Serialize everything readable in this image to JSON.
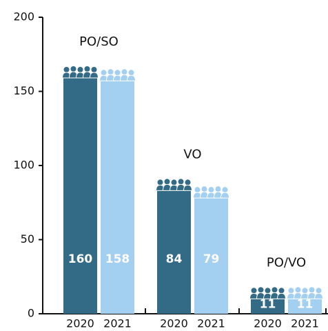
{
  "chart_data": {
    "type": "bar",
    "categories": [
      "PO/SO",
      "VO",
      "PO/VO"
    ],
    "series": [
      {
        "name": "2020",
        "color": "#336b87",
        "values": [
          160,
          84,
          11
        ]
      },
      {
        "name": "2021",
        "color": "#a3cff0",
        "values": [
          158,
          79,
          11
        ]
      }
    ],
    "ylim": [
      0,
      200
    ],
    "yticks": [
      0,
      50,
      100,
      150,
      200
    ],
    "grid": false
  }
}
